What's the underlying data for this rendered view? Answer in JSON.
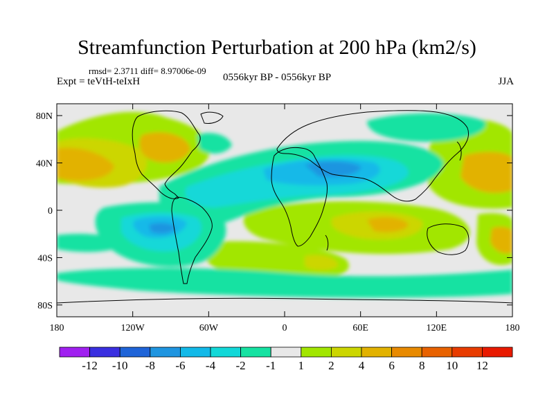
{
  "title": "Streamfunction Perturbation at 200 hPa (km2/s)",
  "stats": "rmsd= 2.3711 diff= 8.97006e-09",
  "experiment": "Expt = teVtH-teIxH",
  "period": "0556kyr BP - 0556kyr BP",
  "season": "JJA",
  "chart_data": {
    "type": "heatmap",
    "title": "Streamfunction Perturbation at 200 hPa (km2/s)",
    "projection": "cylindrical equidistant",
    "xlim": [
      -180,
      180
    ],
    "ylim": [
      -90,
      90
    ],
    "x_ticks": [
      {
        "value": -180,
        "label": "180"
      },
      {
        "value": -120,
        "label": "120W"
      },
      {
        "value": -60,
        "label": "60W"
      },
      {
        "value": 0,
        "label": "0"
      },
      {
        "value": 60,
        "label": "60E"
      },
      {
        "value": 120,
        "label": "120E"
      },
      {
        "value": 180,
        "label": "180"
      }
    ],
    "y_ticks": [
      {
        "value": 80,
        "label": "80N"
      },
      {
        "value": 40,
        "label": "40N"
      },
      {
        "value": 0,
        "label": "0"
      },
      {
        "value": -40,
        "label": "40S"
      },
      {
        "value": -80,
        "label": "80S"
      }
    ],
    "colorbar": {
      "labels": [
        "-12",
        "-10",
        "-8",
        "-6",
        "-4",
        "-2",
        "-1",
        "1",
        "2",
        "4",
        "6",
        "8",
        "10",
        "12"
      ],
      "colors": [
        "#a020f0",
        "#3a2fe0",
        "#1f64d8",
        "#1f95e0",
        "#12b9e8",
        "#12d8d8",
        "#16e2a2",
        "#e8e8e8",
        "#a2e600",
        "#ccd600",
        "#e2b200",
        "#e88a00",
        "#e86200",
        "#e83c00",
        "#e81a00"
      ]
    },
    "regions": [
      {
        "name": "N Pacific positive",
        "lon": -150,
        "lat": 30,
        "value": 5
      },
      {
        "name": "N America positive",
        "lon": -100,
        "lat": 42,
        "value": 5
      },
      {
        "name": "Tropical Atlantic negative",
        "lon": -40,
        "lat": 10,
        "value": -4
      },
      {
        "name": "Eurasia negative",
        "lon": 45,
        "lat": 35,
        "value": -6
      },
      {
        "name": "S America negative",
        "lon": -75,
        "lat": -25,
        "value": -7
      },
      {
        "name": "Indian Ocean positive",
        "lon": 75,
        "lat": -20,
        "value": 5
      },
      {
        "name": "W Pacific positive",
        "lon": 170,
        "lat": 35,
        "value": 5
      },
      {
        "name": "S Atlantic positive",
        "lon": 15,
        "lat": -45,
        "value": 4
      }
    ]
  }
}
